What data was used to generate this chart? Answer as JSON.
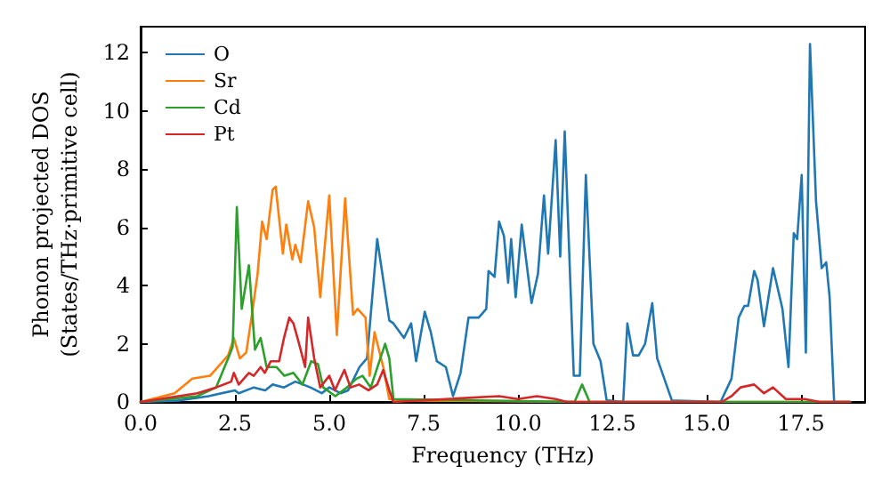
{
  "chart_data": {
    "type": "line",
    "xlabel": "Frequency (THz)",
    "ylabel": "Phonon projected DOS\n(States/THz·primitive cell)",
    "xlim": [
      0,
      19.2
    ],
    "ylim": [
      0,
      12.9
    ],
    "xticks": [
      {
        "value": 0,
        "label": "0.0"
      },
      2.5,
      {
        "value": 5,
        "label": "5.0"
      },
      7.5,
      {
        "value": 10,
        "label": "10.0"
      },
      12.5,
      {
        "value": 15,
        "label": "15.0"
      },
      17.5
    ],
    "yticks": [
      0,
      2,
      4,
      6,
      8,
      10,
      12
    ],
    "grid": false,
    "legend": "top left",
    "marker": "none",
    "line_style": "solid",
    "series": [
      {
        "name": "O",
        "color": "#1f77b4",
        "x": [
          0,
          1,
          1.8,
          2.5,
          2.6,
          3.0,
          3.3,
          3.5,
          3.8,
          4.1,
          4.5,
          4.8,
          5.0,
          5.3,
          5.5,
          5.8,
          6.0,
          6.27,
          6.59,
          6.7,
          6.98,
          7.17,
          7.3,
          7.53,
          7.69,
          7.85,
          8.09,
          8.28,
          8.48,
          8.69,
          8.96,
          9.16,
          9.22,
          9.38,
          9.5,
          9.63,
          9.74,
          9.82,
          9.94,
          10.1,
          10.36,
          10.53,
          10.69,
          10.8,
          11.0,
          11.12,
          11.24,
          11.48,
          11.64,
          11.8,
          12.0,
          12.19,
          12.35,
          12.79,
          12.9,
          13.05,
          13.2,
          13.37,
          13.56,
          13.69,
          14.08,
          15.37,
          15.66,
          15.85,
          16.0,
          16.1,
          16.26,
          16.35,
          16.52,
          16.76,
          17.01,
          17.17,
          17.31,
          17.4,
          17.52,
          17.63,
          17.74,
          17.9,
          18.05,
          18.17,
          18.26,
          18.38,
          18.8
        ],
        "values": [
          0,
          0.05,
          0.2,
          0.4,
          0.3,
          0.5,
          0.4,
          0.6,
          0.5,
          0.7,
          0.5,
          0.3,
          0.5,
          0.3,
          0.4,
          1.2,
          1.5,
          5.6,
          2.8,
          2.7,
          2.2,
          2.7,
          1.4,
          3.1,
          2.4,
          1.4,
          1.2,
          0.2,
          1.0,
          2.9,
          2.9,
          3.2,
          4.5,
          4.3,
          6.2,
          5.7,
          4.1,
          5.6,
          3.6,
          6.1,
          3.4,
          4.4,
          7.1,
          5.1,
          9.0,
          5.0,
          9.3,
          0.9,
          0.9,
          7.8,
          2.0,
          1.4,
          0.06,
          0,
          2.7,
          1.6,
          1.6,
          2.0,
          3.4,
          1.5,
          0.05,
          0,
          0.8,
          2.9,
          3.3,
          3.3,
          4.5,
          4.2,
          2.6,
          4.6,
          3.2,
          1.2,
          5.8,
          5.6,
          7.8,
          1.7,
          12.3,
          6.9,
          4.6,
          4.8,
          3.6,
          0,
          0
        ]
      },
      {
        "name": "Sr",
        "color": "#ff7f0e",
        "x": [
          0,
          0.9,
          1.37,
          1.84,
          2.32,
          2.47,
          2.63,
          2.8,
          2.95,
          3.1,
          3.22,
          3.34,
          3.5,
          3.58,
          3.77,
          3.86,
          4.02,
          4.1,
          4.24,
          4.44,
          4.6,
          4.76,
          5.0,
          5.2,
          5.42,
          5.63,
          5.75,
          5.96,
          6.07,
          6.2,
          6.43,
          6.59,
          7.0,
          12.0,
          18.8
        ],
        "values": [
          0,
          0.3,
          0.8,
          0.9,
          1.6,
          2.2,
          1.5,
          1.7,
          3.0,
          4.4,
          6.2,
          5.6,
          7.3,
          7.4,
          5.1,
          6.1,
          4.9,
          5.4,
          4.8,
          6.9,
          6.0,
          3.6,
          7.1,
          2.3,
          7.0,
          3.0,
          3.2,
          2.9,
          0.9,
          2.4,
          1.2,
          0.1,
          0.05,
          0,
          0
        ]
      },
      {
        "name": "Cd",
        "color": "#2ca02c",
        "x": [
          0,
          1.5,
          2.0,
          2.32,
          2.44,
          2.55,
          2.68,
          2.87,
          3.03,
          3.18,
          3.34,
          3.6,
          3.81,
          4.05,
          4.29,
          4.52,
          4.7,
          4.84,
          5.16,
          5.47,
          5.72,
          5.88,
          6.1,
          6.48,
          6.59,
          6.7,
          11.5,
          11.7,
          11.9,
          18.8
        ],
        "values": [
          0,
          0.2,
          0.5,
          1.5,
          1.9,
          6.7,
          3.2,
          4.7,
          1.8,
          2.2,
          1.2,
          1.2,
          0.9,
          1.0,
          0.6,
          1.4,
          1.3,
          0.5,
          0.2,
          0.5,
          0.8,
          0.9,
          0.5,
          2.0,
          1.5,
          0.1,
          0,
          0.6,
          0,
          0
        ]
      },
      {
        "name": "Pt",
        "color": "#d62728",
        "x": [
          0,
          1.5,
          2.0,
          2.4,
          2.47,
          2.6,
          2.87,
          3.0,
          3.18,
          3.29,
          3.45,
          3.67,
          3.8,
          3.94,
          4.05,
          4.2,
          4.36,
          4.44,
          4.6,
          4.76,
          5.0,
          5.15,
          5.4,
          5.56,
          5.79,
          6.04,
          6.27,
          6.43,
          6.59,
          6.7,
          9.5,
          10.0,
          10.5,
          11.0,
          11.3,
          15.4,
          15.66,
          15.9,
          16.26,
          16.52,
          16.76,
          17.1,
          17.6,
          18.0,
          18.8
        ],
        "values": [
          0,
          0.3,
          0.5,
          0.7,
          1.0,
          0.6,
          1.0,
          0.9,
          1.2,
          1.0,
          1.4,
          1.4,
          2.2,
          2.9,
          2.7,
          2.0,
          1.2,
          2.9,
          1.5,
          0.5,
          0.9,
          0.4,
          1.1,
          0.5,
          0.6,
          0.4,
          0.6,
          1.1,
          0.4,
          0,
          0.2,
          0.1,
          0.2,
          0.1,
          0,
          0,
          0.2,
          0.5,
          0.6,
          0.3,
          0.5,
          0.1,
          0.1,
          0,
          0
        ]
      }
    ]
  }
}
